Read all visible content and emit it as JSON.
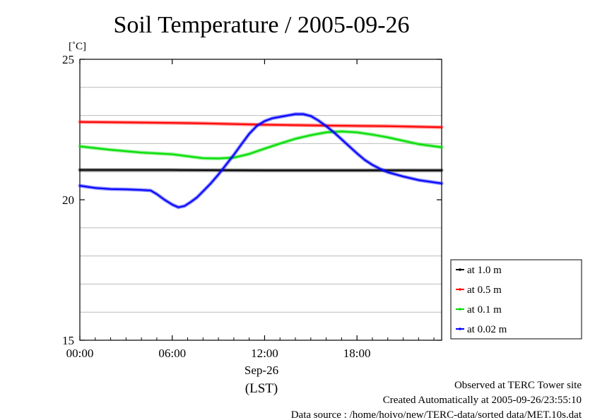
{
  "chart_data": {
    "type": "line",
    "title": "Soil Temperature / 2005-09-26",
    "ylabel": "[˚C]",
    "xlabel_date": "Sep-26",
    "xlabel_tz": "(LST)",
    "xlim": [
      0,
      23.5
    ],
    "ylim": [
      15,
      25
    ],
    "x_ticks": [
      {
        "value": 0,
        "label": "00:00"
      },
      {
        "value": 6,
        "label": "06:00"
      },
      {
        "value": 12,
        "label": "12:00"
      },
      {
        "value": 18,
        "label": "18:00"
      }
    ],
    "y_ticks": [
      {
        "value": 25,
        "label": "25"
      },
      {
        "value": 20,
        "label": "20"
      },
      {
        "value": 15,
        "label": "15"
      }
    ],
    "y_grid": [
      16,
      17,
      18,
      19,
      21,
      22,
      23,
      24
    ],
    "grid": true,
    "legend_position": "right",
    "series": [
      {
        "name": "at 1.0 m",
        "color": "#000000",
        "points": [
          [
            0,
            21.06
          ],
          [
            6,
            21.06
          ],
          [
            12,
            21.05
          ],
          [
            18,
            21.05
          ],
          [
            23.5,
            21.05
          ]
        ]
      },
      {
        "name": "at 0.5 m",
        "color": "#ff0000",
        "points": [
          [
            0,
            22.77
          ],
          [
            4,
            22.75
          ],
          [
            8,
            22.72
          ],
          [
            12,
            22.67
          ],
          [
            16,
            22.64
          ],
          [
            20,
            22.62
          ],
          [
            23.5,
            22.58
          ]
        ]
      },
      {
        "name": "at 0.1 m",
        "color": "#00dd00",
        "points": [
          [
            0,
            21.9
          ],
          [
            2,
            21.78
          ],
          [
            4,
            21.68
          ],
          [
            6,
            21.62
          ],
          [
            8,
            21.48
          ],
          [
            9,
            21.47
          ],
          [
            10,
            21.5
          ],
          [
            11,
            21.63
          ],
          [
            12,
            21.82
          ],
          [
            13,
            22.0
          ],
          [
            14,
            22.17
          ],
          [
            15,
            22.3
          ],
          [
            16,
            22.4
          ],
          [
            17,
            22.43
          ],
          [
            18,
            22.4
          ],
          [
            19,
            22.32
          ],
          [
            20,
            22.22
          ],
          [
            21,
            22.1
          ],
          [
            22,
            21.98
          ],
          [
            23.5,
            21.87
          ]
        ]
      },
      {
        "name": "at 0.02 m",
        "color": "#0000ff",
        "points": [
          [
            0,
            20.5
          ],
          [
            1,
            20.42
          ],
          [
            2,
            20.38
          ],
          [
            3,
            20.37
          ],
          [
            4,
            20.35
          ],
          [
            4.6,
            20.33
          ],
          [
            5,
            20.2
          ],
          [
            5.5,
            20.0
          ],
          [
            6,
            19.83
          ],
          [
            6.4,
            19.73
          ],
          [
            6.8,
            19.78
          ],
          [
            7.2,
            19.92
          ],
          [
            7.6,
            20.08
          ],
          [
            8,
            20.3
          ],
          [
            8.5,
            20.58
          ],
          [
            9,
            20.9
          ],
          [
            9.5,
            21.25
          ],
          [
            10,
            21.6
          ],
          [
            10.5,
            21.98
          ],
          [
            11,
            22.35
          ],
          [
            11.5,
            22.63
          ],
          [
            12,
            22.8
          ],
          [
            12.5,
            22.9
          ],
          [
            13,
            22.95
          ],
          [
            13.5,
            23.0
          ],
          [
            14,
            23.05
          ],
          [
            14.5,
            23.05
          ],
          [
            15,
            22.98
          ],
          [
            15.5,
            22.82
          ],
          [
            16,
            22.62
          ],
          [
            16.5,
            22.4
          ],
          [
            17,
            22.15
          ],
          [
            17.5,
            21.9
          ],
          [
            18,
            21.65
          ],
          [
            18.5,
            21.42
          ],
          [
            19,
            21.24
          ],
          [
            19.5,
            21.1
          ],
          [
            20,
            20.98
          ],
          [
            21,
            20.83
          ],
          [
            22,
            20.7
          ],
          [
            23.5,
            20.58
          ]
        ]
      }
    ]
  },
  "footer": {
    "observed": "Observed at TERC Tower site",
    "created": "Created Automatically at 2005-09-26/23:55:10",
    "source": "Data source : /home/hoivo/new/TERC-data/sorted  data/MET.10s.dat"
  }
}
